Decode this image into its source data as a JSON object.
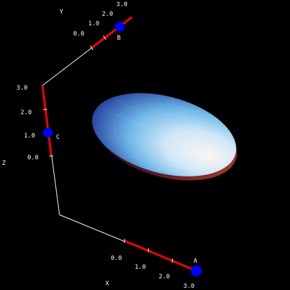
{
  "axes": {
    "x": {
      "name": "X",
      "ticks": [
        "0.0",
        "1.0",
        "2.0",
        "3.0"
      ]
    },
    "y": {
      "name": "Y",
      "ticks": [
        "0.0",
        "1.0",
        "2.0",
        "3.0"
      ]
    },
    "z": {
      "name": "Z",
      "ticks": [
        "0.0",
        "1.0",
        "2.0",
        "3.0"
      ]
    }
  },
  "handles": {
    "a": {
      "label": "A",
      "value": 3.0
    },
    "b": {
      "label": "B",
      "value": 2.4
    },
    "c": {
      "label": "C",
      "value": 1.0
    }
  },
  "colors": {
    "background": "#000000",
    "axis_line": "#ffffff",
    "range_segment": "#ff0000",
    "handle": "#0000ff",
    "ellipsoid_light": "#e8f4ff",
    "ellipsoid_mid": "#6fb8e8",
    "ellipsoid_dark": "#1e3a9a",
    "ellipsoid_underside": "#7a1010"
  }
}
